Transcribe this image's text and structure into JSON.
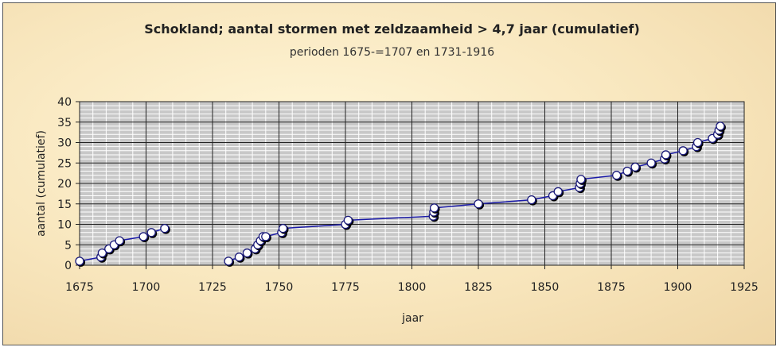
{
  "chart_data": {
    "type": "line",
    "title": "Schokland; aantal stormen met zeldzaamheid > 4,7 jaar (cumulatief)",
    "subtitle": "perioden 1675-=1707 en 1731-1916",
    "xlabel": "jaar",
    "ylabel": "aantal (cumulatief)",
    "xlim": [
      1675,
      1925
    ],
    "ylim": [
      0,
      40
    ],
    "xticks": [
      1675,
      1700,
      1725,
      1750,
      1775,
      1800,
      1825,
      1850,
      1875,
      1900,
      1925
    ],
    "yticks": [
      0,
      5,
      10,
      15,
      20,
      25,
      30,
      35,
      40
    ],
    "grid": true,
    "line_color": "#1a1aa8",
    "plot_background": "#c8c8c8",
    "series": [
      {
        "segment": "1675-1707",
        "x": [
          1675,
          1683,
          1683.5,
          1686,
          1688,
          1690,
          1699,
          1702,
          1707
        ],
        "y": [
          1,
          2,
          3,
          4,
          5,
          6,
          7,
          8,
          9
        ]
      },
      {
        "segment": "1731-1916",
        "x": [
          1731,
          1735,
          1738,
          1741,
          1742,
          1743,
          1744,
          1745,
          1751,
          1751.5,
          1775,
          1776,
          1808,
          1808.2,
          1808.4,
          1825,
          1845,
          1853,
          1855,
          1863,
          1863.3,
          1863.6,
          1877,
          1881,
          1884,
          1890,
          1895,
          1895.5,
          1902,
          1907,
          1907.5,
          1913,
          1915,
          1915.5,
          1916
        ],
        "y": [
          1,
          2,
          3,
          4,
          5,
          6,
          7,
          7,
          8,
          9,
          10,
          11,
          12,
          13,
          14,
          15,
          16,
          17,
          18,
          19,
          20,
          21,
          22,
          23,
          24,
          25,
          26,
          27,
          28,
          29,
          30,
          31,
          32,
          33,
          34
        ]
      }
    ]
  }
}
